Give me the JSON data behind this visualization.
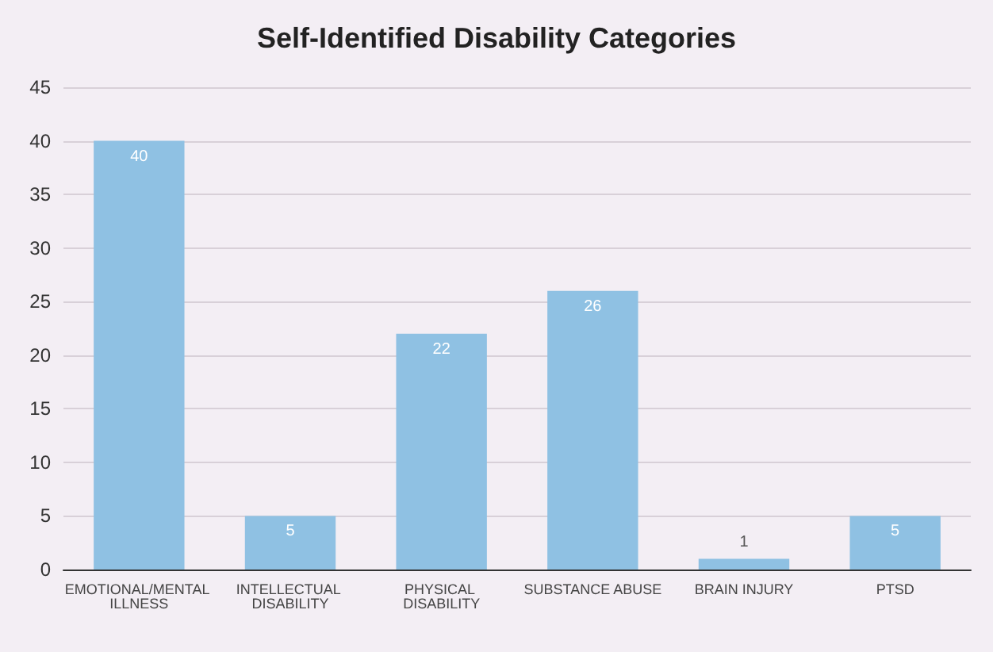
{
  "chart_data": {
    "type": "bar",
    "title": "Self-Identified Disability Categories",
    "categories": [
      "EMOTIONAL/MENTAL ILLNESS",
      "INTELLECTUAL DISABILITY",
      "PHYSICAL DISABILITY",
      "SUBSTANCE ABUSE",
      "BRAIN INJURY",
      "PTSD"
    ],
    "values": [
      40,
      5,
      22,
      26,
      1,
      5
    ],
    "color": "#8fc1e3",
    "ylim": [
      0,
      45
    ],
    "yticks": [
      0,
      5,
      10,
      15,
      20,
      25,
      30,
      35,
      40,
      45
    ],
    "grid": "y",
    "data_labels": true
  }
}
